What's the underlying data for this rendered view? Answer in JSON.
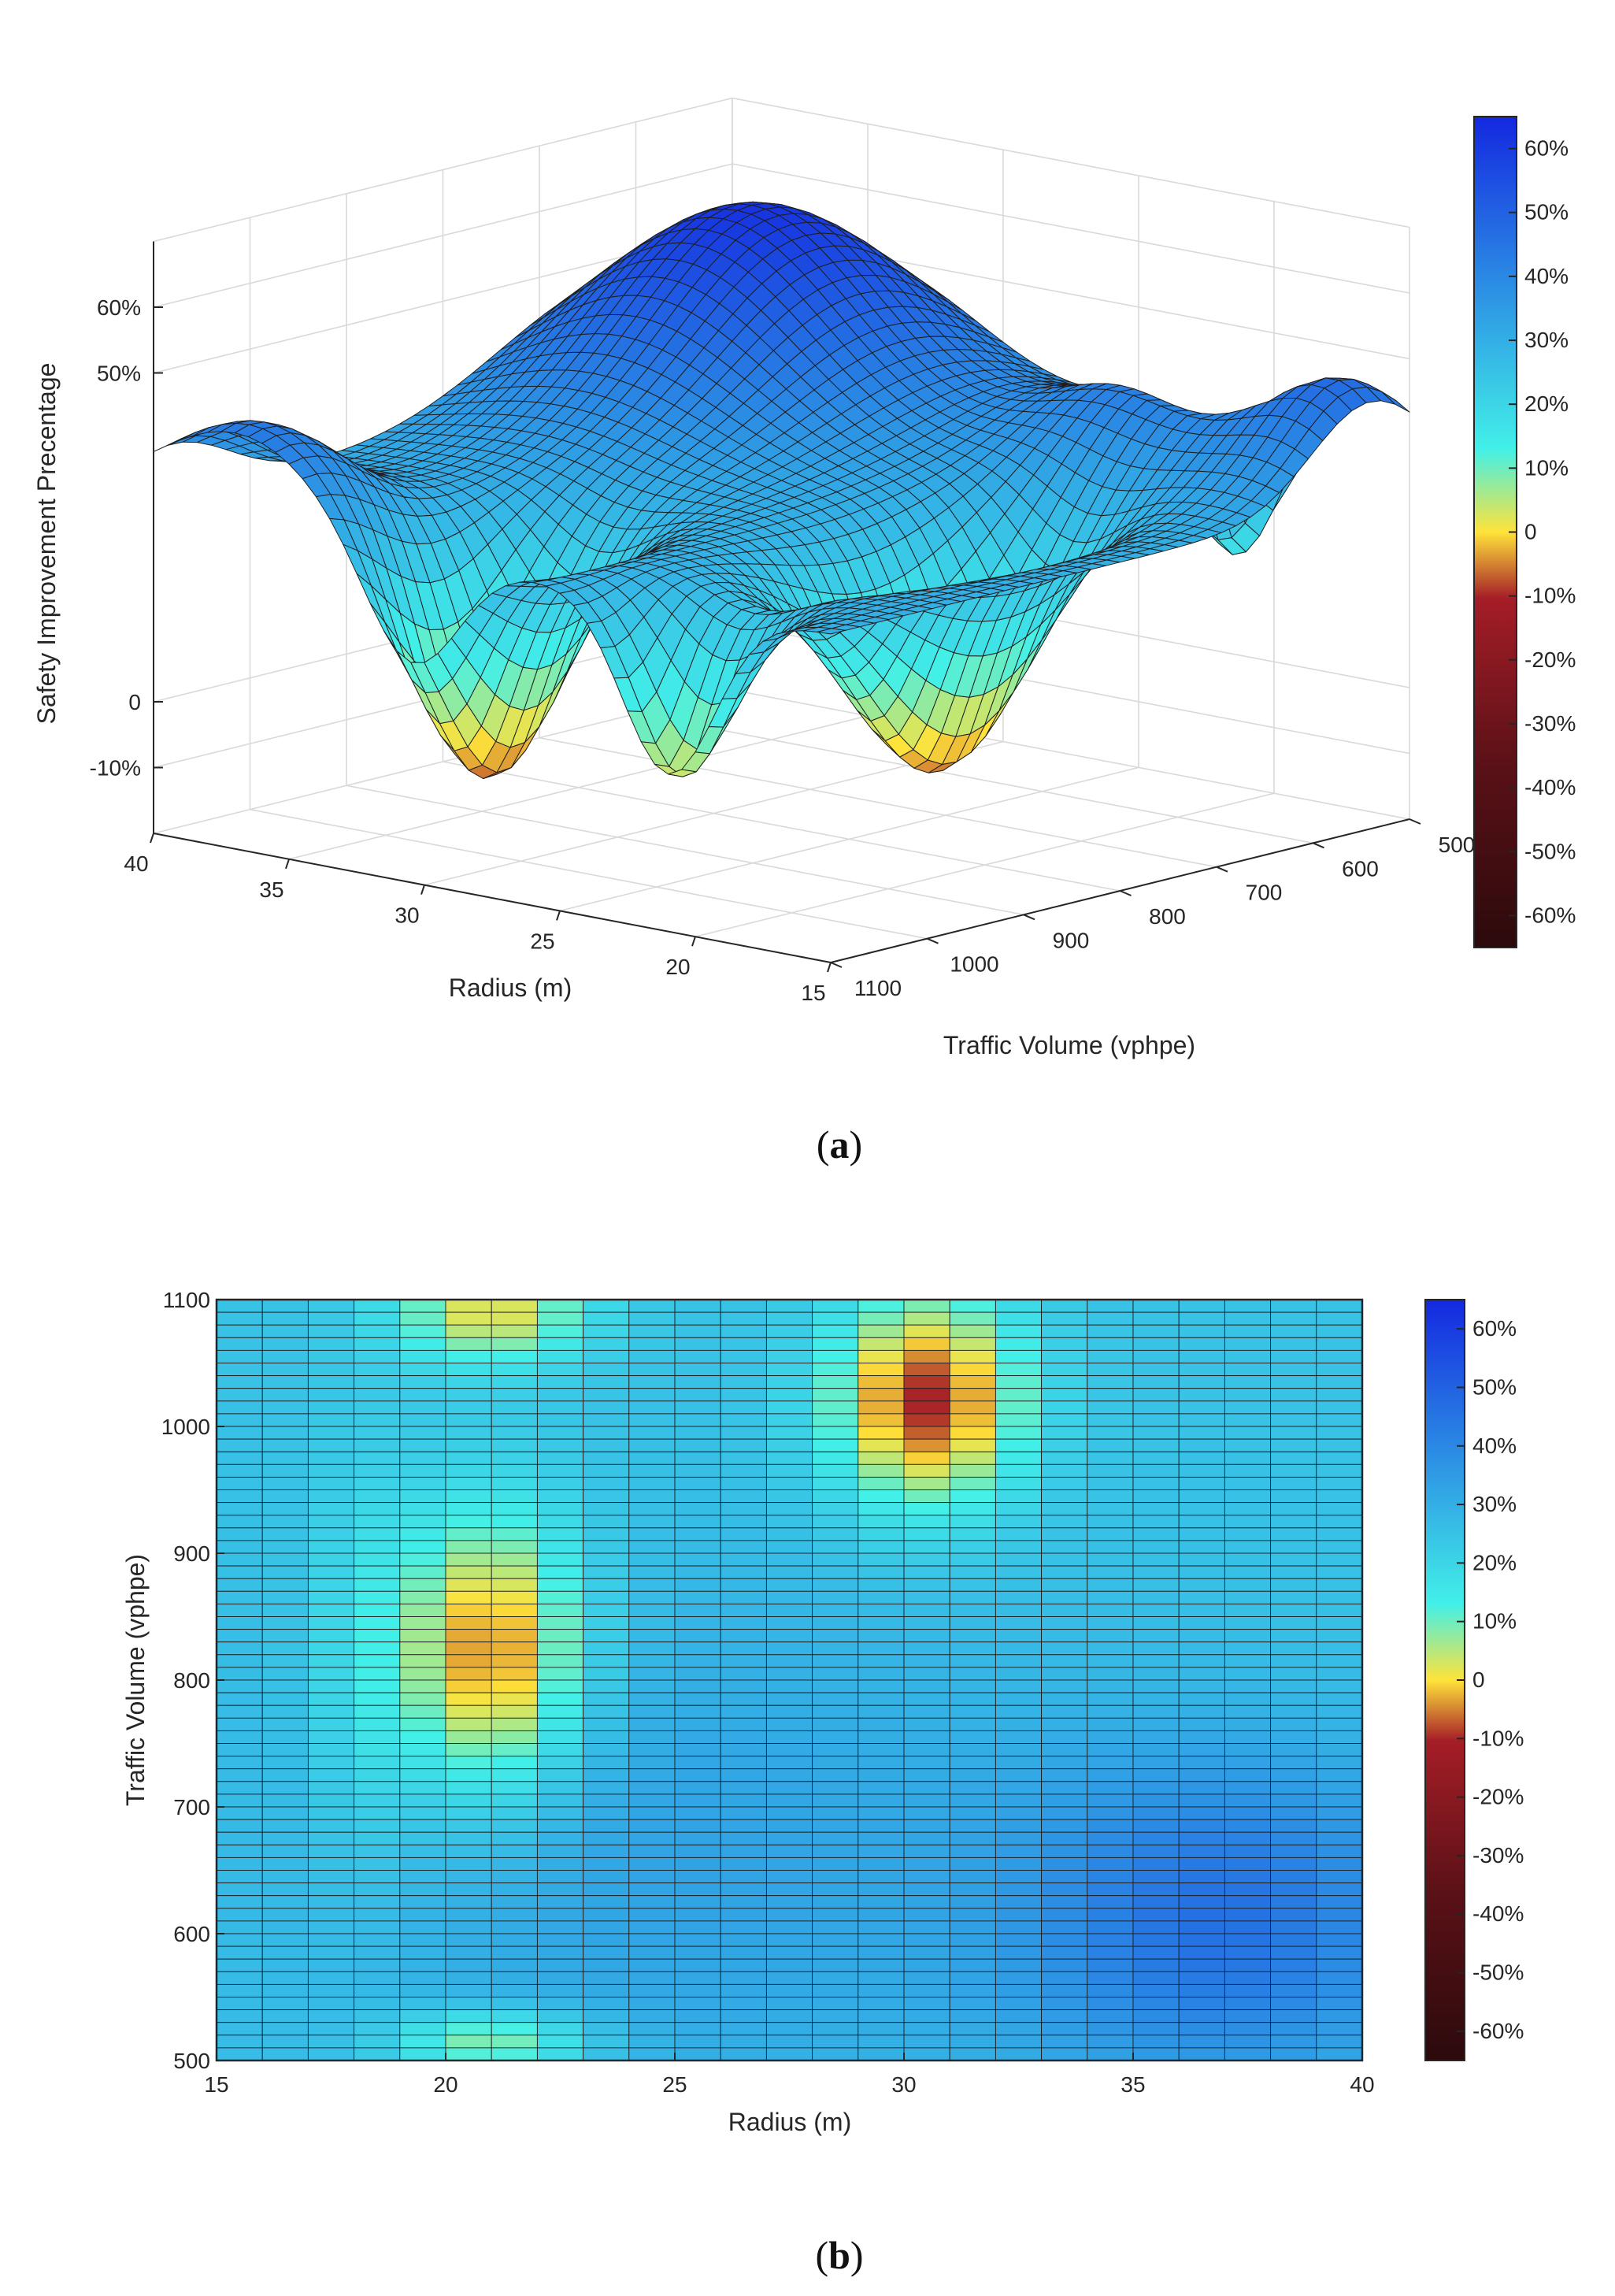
{
  "chart_data": [
    {
      "panel": "a",
      "type": "surface3d",
      "caption_open": "(",
      "caption_letter": "a",
      "caption_close": ")",
      "zlabel": "Safety Improvement Precentage",
      "xlabel": "Radius (m)",
      "ylabel": "Traffic Volume (vphpe)",
      "x_ticks": [
        "40",
        "35",
        "30",
        "25",
        "20",
        "15"
      ],
      "y_ticks": [
        "1100",
        "1000",
        "900",
        "800",
        "700",
        "600",
        "500"
      ],
      "z_ticks": [
        "60%",
        "50%",
        "0",
        "-10%"
      ],
      "x_range": [
        15,
        40
      ],
      "y_range": [
        500,
        1100
      ],
      "z_range": [
        -20,
        70
      ],
      "colorbar_ticks": [
        "60%",
        "50%",
        "40%",
        "30%",
        "20%",
        "10%",
        "0",
        "-10%",
        "-20%",
        "-30%",
        "-40%",
        "-50%",
        "-60%"
      ],
      "colorbar_range": [
        -65,
        65
      ],
      "surface_summary": {
        "baseline_percent": 30,
        "peak_percent": 65,
        "peak_at": {
          "radius_m": 37,
          "volume_vphpe": 600
        },
        "minima": [
          {
            "radius_m": 21,
            "volume_vphpe": 820,
            "percent": -8
          },
          {
            "radius_m": 30.5,
            "volume_vphpe": 1020,
            "percent": -10
          },
          {
            "radius_m": 21,
            "volume_vphpe": 1090,
            "percent": 3
          },
          {
            "radius_m": 21,
            "volume_vphpe": 520,
            "percent": 3
          }
        ]
      }
    },
    {
      "panel": "b",
      "type": "heatmap",
      "caption_open": "(",
      "caption_letter": "b",
      "caption_close": ")",
      "xlabel": "Radius (m)",
      "ylabel": "Traffic Volume (vphpe)",
      "x_ticks": [
        "15",
        "20",
        "25",
        "30",
        "35",
        "40"
      ],
      "y_ticks": [
        "1100",
        "1000",
        "900",
        "800",
        "700",
        "600",
        "500"
      ],
      "xlim": [
        15,
        40
      ],
      "ylim": [
        500,
        1100
      ],
      "grid": {
        "columns": 25,
        "rows": 60
      },
      "colorbar_ticks": [
        "60%",
        "50%",
        "40%",
        "30%",
        "20%",
        "10%",
        "0",
        "-10%",
        "-20%",
        "-30%",
        "-40%",
        "-50%",
        "-60%"
      ],
      "colorbar_range": [
        -65,
        65
      ],
      "summary": {
        "baseline_percent": 25,
        "high_region": {
          "radius_m": [
            33,
            40
          ],
          "volume_vphpe": [
            550,
            700
          ],
          "percent": 45
        },
        "low_regions": [
          {
            "radius_m": 21,
            "volume_vphpe": 820,
            "percent": -8
          },
          {
            "radius_m": 30.5,
            "volume_vphpe": 1020,
            "percent": -10
          },
          {
            "radius_m": 21,
            "volume_vphpe": 1090,
            "percent": 3
          },
          {
            "radius_m": 21,
            "volume_vphpe": 515,
            "percent": 5
          }
        ]
      }
    }
  ],
  "colors": {
    "colormap": [
      "#2c0a0c",
      "#5a1117",
      "#a51d27",
      "#ffe33a",
      "#42f0e8",
      "#1428e0"
    ],
    "grid_line": "#1e1e1e",
    "axis": "#262626"
  }
}
